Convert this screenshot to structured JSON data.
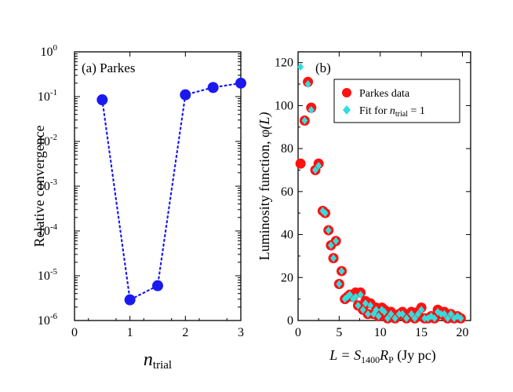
{
  "colors": {
    "blue": "#1a1aee",
    "red": "#ff1111",
    "cyan": "#33dddd",
    "axis": "#000000"
  },
  "chart_data": [
    {
      "type": "scatter",
      "panel_label": "(a) Parkes",
      "xlabel_main": "n",
      "xlabel_sub": "trial",
      "ylabel": "Relative convergence",
      "xlim": [
        0,
        3
      ],
      "ylim": [
        1e-06,
        1
      ],
      "yscale": "log",
      "xticks": [
        "0",
        "1",
        "2",
        "3"
      ],
      "yticks": [
        {
          "base": "10",
          "exp": "-6"
        },
        {
          "base": "10",
          "exp": "-5"
        },
        {
          "base": "10",
          "exp": "-4"
        },
        {
          "base": "10",
          "exp": "-3"
        },
        {
          "base": "10",
          "exp": "-2"
        },
        {
          "base": "10",
          "exp": "-1"
        },
        {
          "base": "10",
          "exp": "0"
        }
      ],
      "series": [
        {
          "style": "markers+dotted-line",
          "x": [
            0.5,
            1.0,
            1.5,
            2.0,
            2.5,
            3.0
          ],
          "y": [
            0.085,
            2.9e-06,
            6e-06,
            0.11,
            0.16,
            0.2
          ]
        }
      ]
    },
    {
      "type": "scatter",
      "panel_label": "(b)",
      "xlabel_parts": [
        "L = S",
        "1400",
        "R",
        "P",
        " (Jy pc)"
      ],
      "ylabel_parts": [
        "Luminosity function, ",
        "φ",
        "(L)"
      ],
      "xlim": [
        0,
        21
      ],
      "ylim": [
        0,
        125
      ],
      "xticks": [
        "0",
        "5",
        "10",
        "15",
        "20"
      ],
      "yticks": [
        "0",
        "20",
        "40",
        "60",
        "80",
        "100",
        "120"
      ],
      "legend_placement": "top-right",
      "legend": {
        "parkes_label": "Parkes data",
        "fit_label_parts": [
          "Fit for ",
          "n",
          "trial",
          " = 1"
        ]
      },
      "series": [
        {
          "legend_index": 0,
          "marker": "red-circle",
          "x": [
            0.3,
            0.8,
            1.2,
            1.6,
            2.1,
            2.5,
            3.0,
            3.3,
            3.7,
            4.0,
            4.3,
            4.6,
            5.0,
            5.3,
            5.7,
            6.0,
            6.3,
            6.7,
            7.0,
            7.3,
            7.6,
            7.9,
            8.2,
            8.5,
            8.8,
            9.2,
            9.5,
            9.8,
            10.2,
            10.5,
            10.9,
            11.3,
            11.8,
            12.3,
            12.7,
            13.2,
            13.8,
            14.2,
            14.6,
            15.0,
            15.4,
            15.8,
            16.2,
            16.6,
            17.0,
            17.4,
            17.8,
            18.2,
            18.6,
            19.0,
            19.4,
            19.8
          ],
          "y": [
            73,
            93,
            111,
            99,
            70,
            73,
            51,
            50,
            42,
            35,
            29,
            37,
            17,
            23,
            10,
            11,
            12,
            11,
            13,
            7,
            13,
            5,
            9,
            3,
            8,
            3,
            6,
            2,
            6,
            5,
            1,
            4,
            1,
            3,
            4,
            1,
            4,
            1,
            4,
            6,
            1,
            1,
            2,
            1,
            5,
            3,
            4,
            1,
            3,
            1,
            2,
            1
          ]
        },
        {
          "legend_index": 1,
          "marker": "cyan-diamond",
          "x": [
            0.3,
            0.8,
            1.2,
            1.6,
            2.1,
            2.5,
            3.0,
            3.3,
            3.7,
            4.0,
            4.3,
            4.6,
            5.0,
            5.3,
            5.7,
            6.0,
            6.3,
            6.7,
            7.0,
            7.3,
            7.6,
            7.9,
            8.2,
            8.5,
            8.8,
            9.2,
            9.5,
            9.8,
            10.2,
            10.5,
            10.9,
            11.3,
            11.8,
            12.3,
            12.7,
            13.2,
            13.8,
            14.2,
            14.6,
            15.0,
            15.4,
            15.8,
            16.2,
            16.6,
            17.0,
            17.4,
            17.8,
            18.2,
            18.6,
            19.0,
            19.4,
            19.8
          ],
          "y": [
            118,
            93,
            110,
            98,
            70,
            72,
            51,
            50,
            42,
            35,
            29,
            37,
            17,
            23,
            10,
            11,
            12,
            10,
            11,
            7,
            12,
            5,
            8,
            3,
            7,
            3,
            5,
            2,
            5,
            4,
            1,
            3,
            1,
            3,
            3,
            1,
            3,
            1,
            3,
            5,
            1,
            1,
            2,
            1,
            4,
            3,
            3,
            1,
            3,
            1,
            2,
            1
          ]
        }
      ]
    }
  ]
}
